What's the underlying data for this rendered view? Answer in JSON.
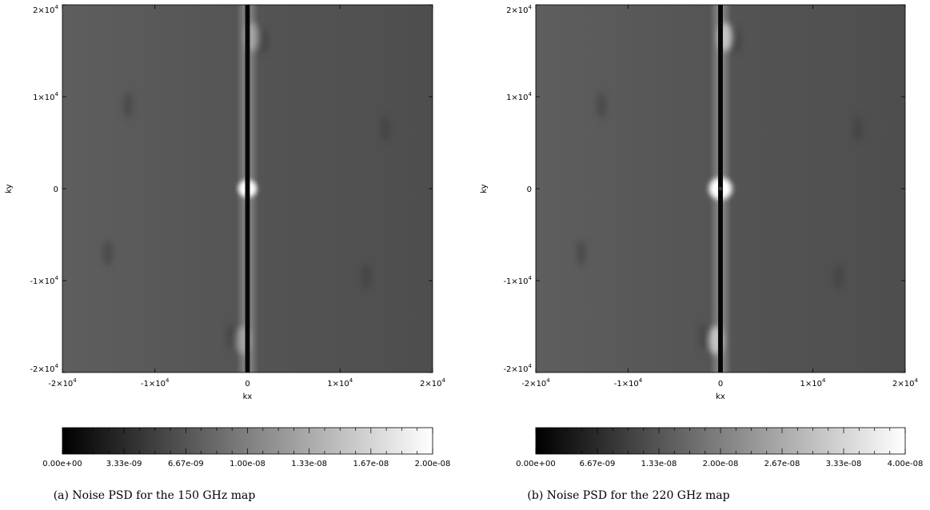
{
  "chart_data": [
    {
      "type": "heatmap",
      "title": "",
      "xlabel": "kx",
      "ylabel": "ky",
      "xlim": [
        -20000,
        20000
      ],
      "ylim": [
        -20000,
        20000
      ],
      "x_ticks": [
        -20000,
        -10000,
        0,
        10000,
        20000
      ],
      "x_tick_labels": [
        {
          "base": "-2×10",
          "exp": "4"
        },
        {
          "base": "-1×10",
          "exp": "4"
        },
        {
          "base": "0",
          "exp": ""
        },
        {
          "base": "1×10",
          "exp": "4"
        },
        {
          "base": "2×10",
          "exp": "4"
        }
      ],
      "y_ticks": [
        20000,
        10000,
        0,
        -10000,
        -20000
      ],
      "y_tick_labels": [
        {
          "base": "2×10",
          "exp": "4"
        },
        {
          "base": "1×10",
          "exp": "4"
        },
        {
          "base": "0",
          "exp": ""
        },
        {
          "base": "-1×10",
          "exp": "4"
        },
        {
          "base": "-2×10",
          "exp": "4"
        }
      ],
      "colorbar": {
        "min": 0,
        "max": 2e-08,
        "tick_labels": [
          "0.00e+00",
          "3.33e-09",
          "6.67e-09",
          "1.00e-08",
          "1.33e-08",
          "1.67e-08",
          "2.00e-08"
        ]
      },
      "caption": "(a) Noise PSD for the 150 GHz map"
    },
    {
      "type": "heatmap",
      "title": "",
      "xlabel": "kx",
      "ylabel": "ky",
      "xlim": [
        -20000,
        20000
      ],
      "ylim": [
        -20000,
        20000
      ],
      "x_ticks": [
        -20000,
        -10000,
        0,
        10000,
        20000
      ],
      "x_tick_labels": [
        {
          "base": "-2×10",
          "exp": "4"
        },
        {
          "base": "-1×10",
          "exp": "4"
        },
        {
          "base": "0",
          "exp": ""
        },
        {
          "base": "1×10",
          "exp": "4"
        },
        {
          "base": "2×10",
          "exp": "4"
        }
      ],
      "y_ticks": [
        20000,
        10000,
        0,
        -10000,
        -20000
      ],
      "y_tick_labels": [
        {
          "base": "2×10",
          "exp": "4"
        },
        {
          "base": "1×10",
          "exp": "4"
        },
        {
          "base": "0",
          "exp": ""
        },
        {
          "base": "-1×10",
          "exp": "4"
        },
        {
          "base": "-2×10",
          "exp": "4"
        }
      ],
      "colorbar": {
        "min": 0,
        "max": 4e-08,
        "tick_labels": [
          "0.00e+00",
          "6.67e-09",
          "1.33e-08",
          "2.00e-08",
          "2.67e-08",
          "3.33e-08",
          "4.00e-08"
        ]
      },
      "caption": "(b) Noise PSD for the 220 GHz map"
    }
  ]
}
